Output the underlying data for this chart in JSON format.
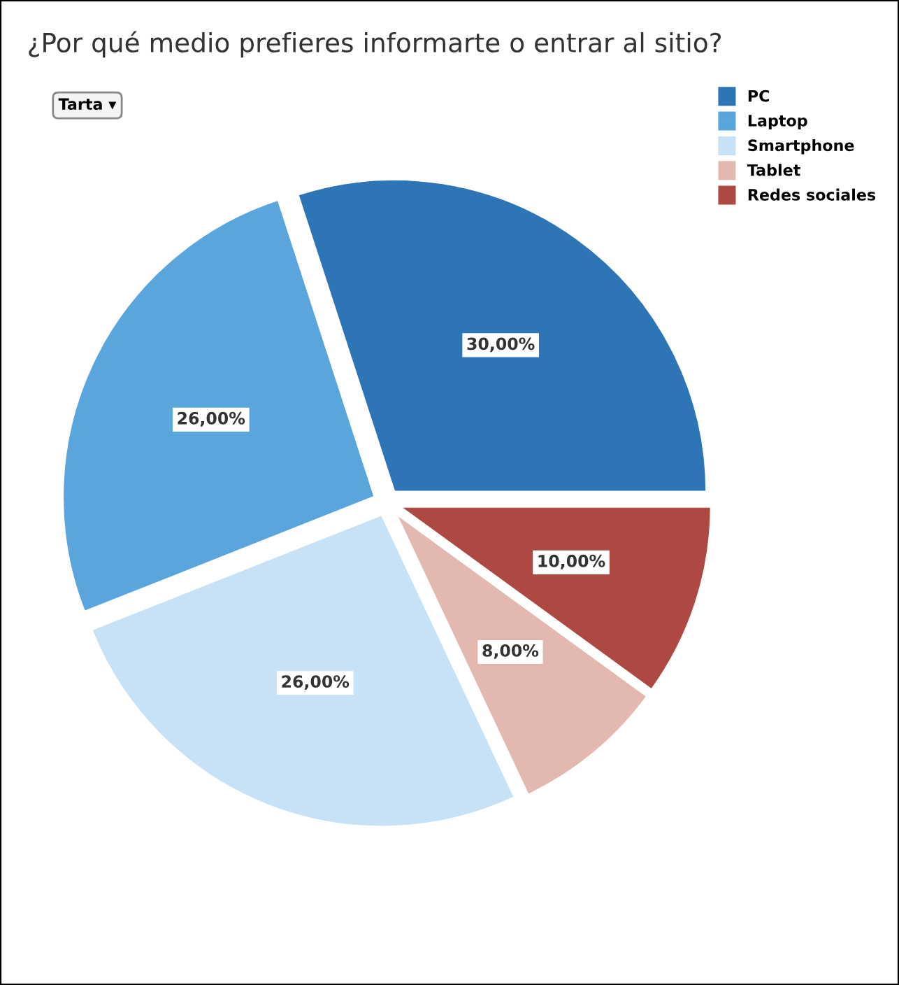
{
  "chart_data": {
    "type": "pie",
    "title": "¿Por qué medio prefieres informarte o entrar al sitio?",
    "categories": [
      "PC",
      "Laptop",
      "Smartphone",
      "Tablet",
      "Redes sociales"
    ],
    "values": [
      30,
      26,
      26,
      8,
      10
    ],
    "colors": [
      "#2e75b6",
      "#5aa5dc",
      "#c7e1f7",
      "#e2b8b0",
      "#ae4843"
    ],
    "value_labels": [
      "30,00%",
      "26,00%",
      "26,00%",
      "8,00%",
      "10,00%"
    ],
    "annotations": [
      "Tarta ▾"
    ],
    "legend": "top right"
  }
}
